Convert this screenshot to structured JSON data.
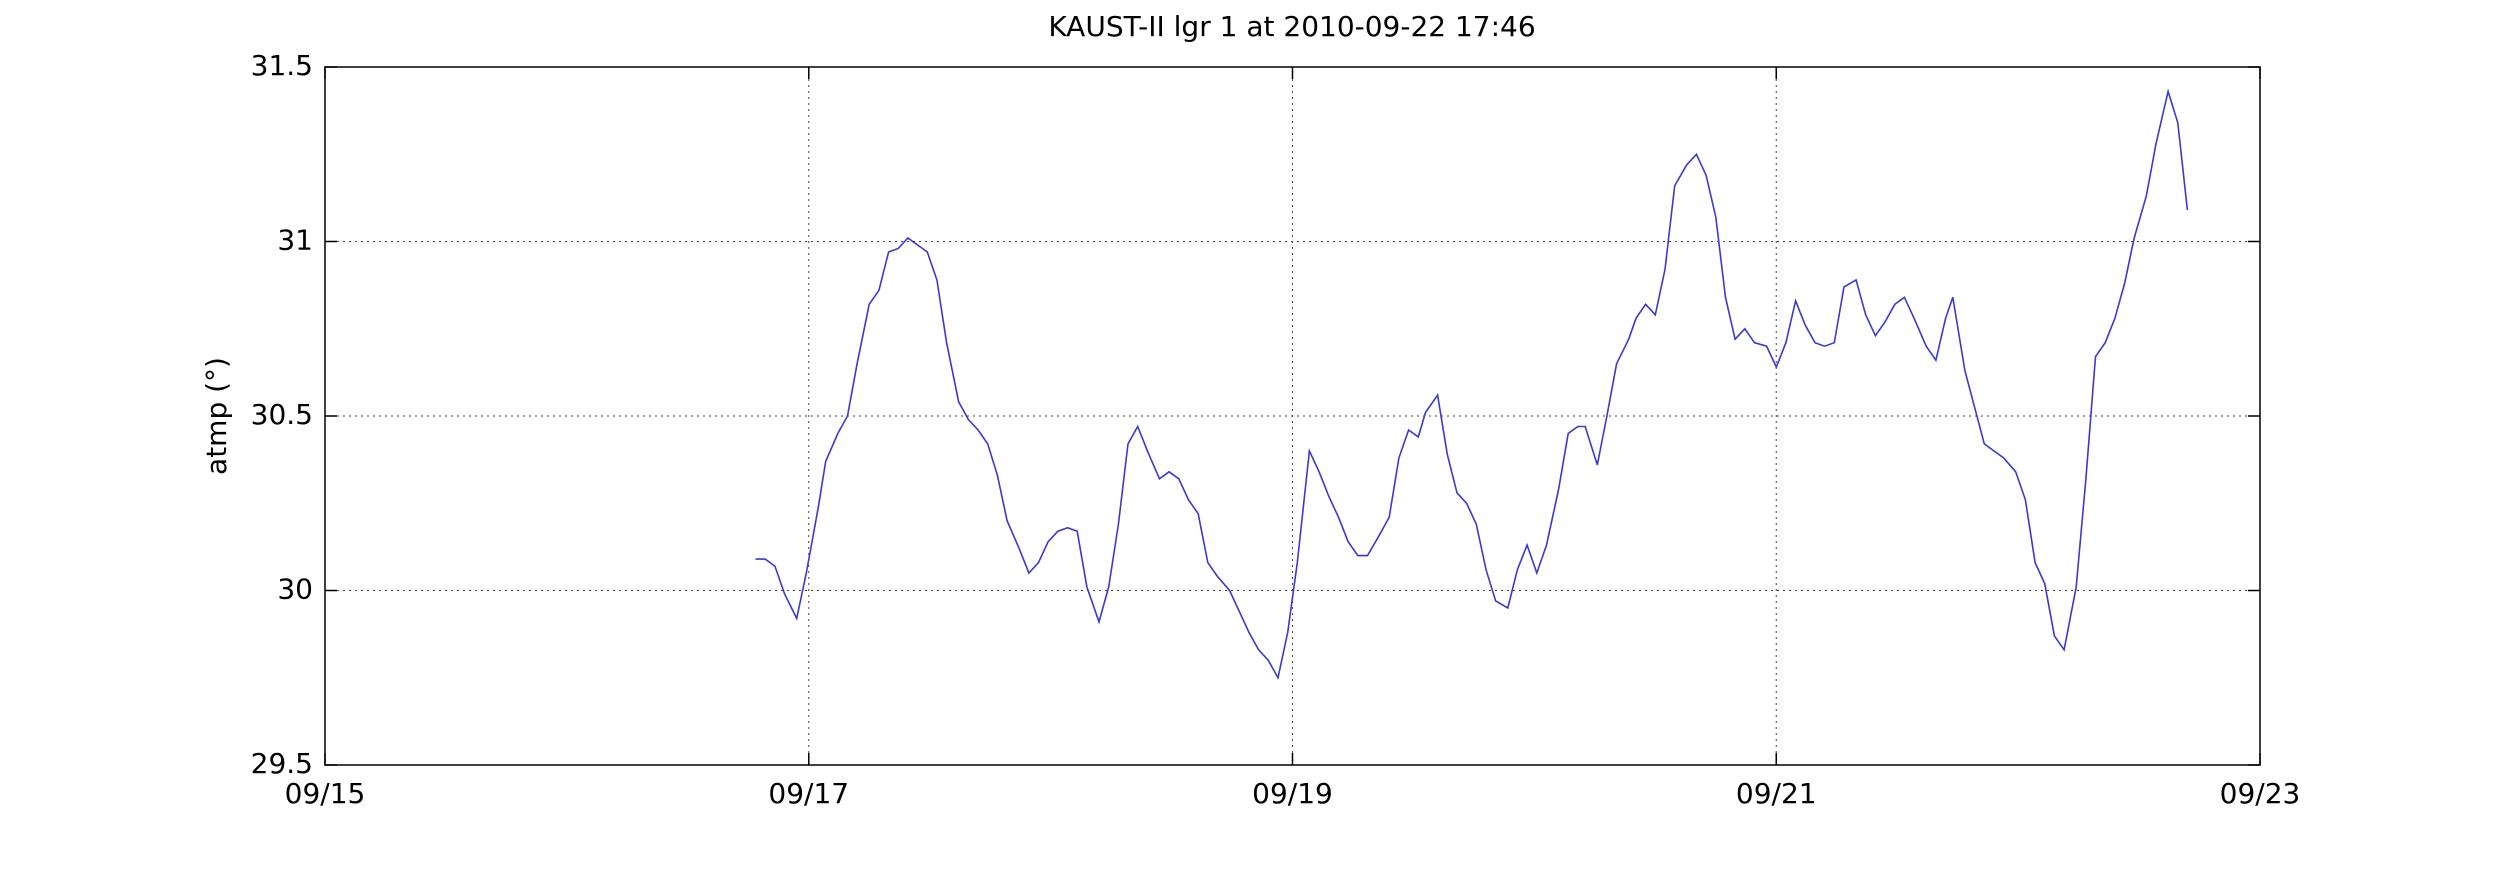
{
  "chart_data": {
    "type": "line",
    "title": "KAUST-II lgr 1 at 2010-09-22 17:46",
    "y_label": "atmp (°)",
    "xlim": [
      15,
      23
    ],
    "ylim": [
      29.5,
      31.5
    ],
    "xticks": [
      {
        "value": 15,
        "label": "09/15"
      },
      {
        "value": 17,
        "label": "09/17"
      },
      {
        "value": 19,
        "label": "09/19"
      },
      {
        "value": 21,
        "label": "09/21"
      },
      {
        "value": 23,
        "label": "09/23"
      }
    ],
    "yticks": [
      29.5,
      30,
      30.5,
      31,
      31.5
    ],
    "grid": true,
    "series": [
      {
        "color": "#3a3acc",
        "x": [
          16.78,
          16.82,
          16.86,
          16.9,
          16.95,
          16.99,
          17.04,
          17.07,
          17.12,
          17.16,
          17.2,
          17.25,
          17.29,
          17.33,
          17.37,
          17.41,
          17.45,
          17.49,
          17.53,
          17.57,
          17.62,
          17.66,
          17.7,
          17.74,
          17.78,
          17.82,
          17.87,
          17.91,
          17.95,
          17.99,
          18.03,
          18.07,
          18.11,
          18.15,
          18.2,
          18.24,
          18.28,
          18.32,
          18.36,
          18.4,
          18.45,
          18.49,
          18.53,
          18.57,
          18.61,
          18.65,
          18.69,
          18.74,
          18.78,
          18.82,
          18.86,
          18.9,
          18.94,
          18.98,
          19.02,
          19.07,
          19.11,
          19.15,
          19.19,
          19.23,
          19.27,
          19.31,
          19.36,
          19.4,
          19.44,
          19.48,
          19.52,
          19.55,
          19.6,
          19.64,
          19.68,
          19.72,
          19.76,
          19.8,
          19.84,
          19.89,
          19.93,
          19.97,
          20.01,
          20.05,
          20.1,
          20.14,
          20.18,
          20.21,
          20.26,
          20.3,
          20.34,
          20.39,
          20.42,
          20.46,
          20.5,
          20.54,
          20.58,
          20.63,
          20.67,
          20.71,
          20.75,
          20.79,
          20.83,
          20.87,
          20.91,
          20.96,
          21,
          21.04,
          21.08,
          21.12,
          21.16,
          21.2,
          21.24,
          21.28,
          21.33,
          21.37,
          21.41,
          21.45,
          21.49,
          21.53,
          21.57,
          21.62,
          21.66,
          21.7,
          21.73,
          21.78,
          21.86,
          21.9,
          21.94,
          21.99,
          22.03,
          22.07,
          22.11,
          22.15,
          22.19,
          22.24,
          22.28,
          22.32,
          22.36,
          22.4,
          22.44,
          22.48,
          22.53,
          22.57,
          22.62,
          22.66,
          22.7
        ],
        "values": [
          30.09,
          30.09,
          30.07,
          29.99,
          29.92,
          30.05,
          30.24,
          30.37,
          30.45,
          30.5,
          30.65,
          30.82,
          30.86,
          30.97,
          30.98,
          31.01,
          30.99,
          30.97,
          30.89,
          30.71,
          30.54,
          30.49,
          30.46,
          30.42,
          30.33,
          30.2,
          30.12,
          30.05,
          30.08,
          30.14,
          30.17,
          30.18,
          30.17,
          30.01,
          29.91,
          30.01,
          30.19,
          30.42,
          30.47,
          30.4,
          30.32,
          30.34,
          30.32,
          30.26,
          30.22,
          30.08,
          30.04,
          30,
          29.94,
          29.88,
          29.83,
          29.8,
          29.75,
          29.88,
          30.08,
          30.4,
          30.34,
          30.27,
          30.21,
          30.14,
          30.1,
          30.1,
          30.16,
          30.21,
          30.38,
          30.46,
          30.44,
          30.51,
          30.56,
          30.39,
          30.28,
          30.25,
          30.19,
          30.06,
          29.97,
          29.95,
          30.06,
          30.13,
          30.05,
          30.13,
          30.29,
          30.45,
          30.47,
          30.47,
          30.36,
          30.5,
          30.65,
          30.72,
          30.78,
          30.82,
          30.79,
          30.92,
          31.16,
          31.22,
          31.25,
          31.19,
          31.07,
          30.84,
          30.72,
          30.75,
          30.71,
          30.7,
          30.64,
          30.71,
          30.83,
          30.76,
          30.71,
          30.7,
          30.71,
          30.87,
          30.89,
          30.79,
          30.73,
          30.77,
          30.82,
          30.84,
          30.78,
          30.7,
          30.66,
          30.78,
          30.84,
          30.63,
          30.42,
          30.4,
          30.38,
          30.34,
          30.26,
          30.08,
          30.02,
          29.87,
          29.83,
          30.01,
          30.32,
          30.67,
          30.71,
          30.78,
          30.88,
          31.01,
          31.13,
          31.28,
          31.43,
          31.34,
          31.09
        ]
      }
    ]
  }
}
